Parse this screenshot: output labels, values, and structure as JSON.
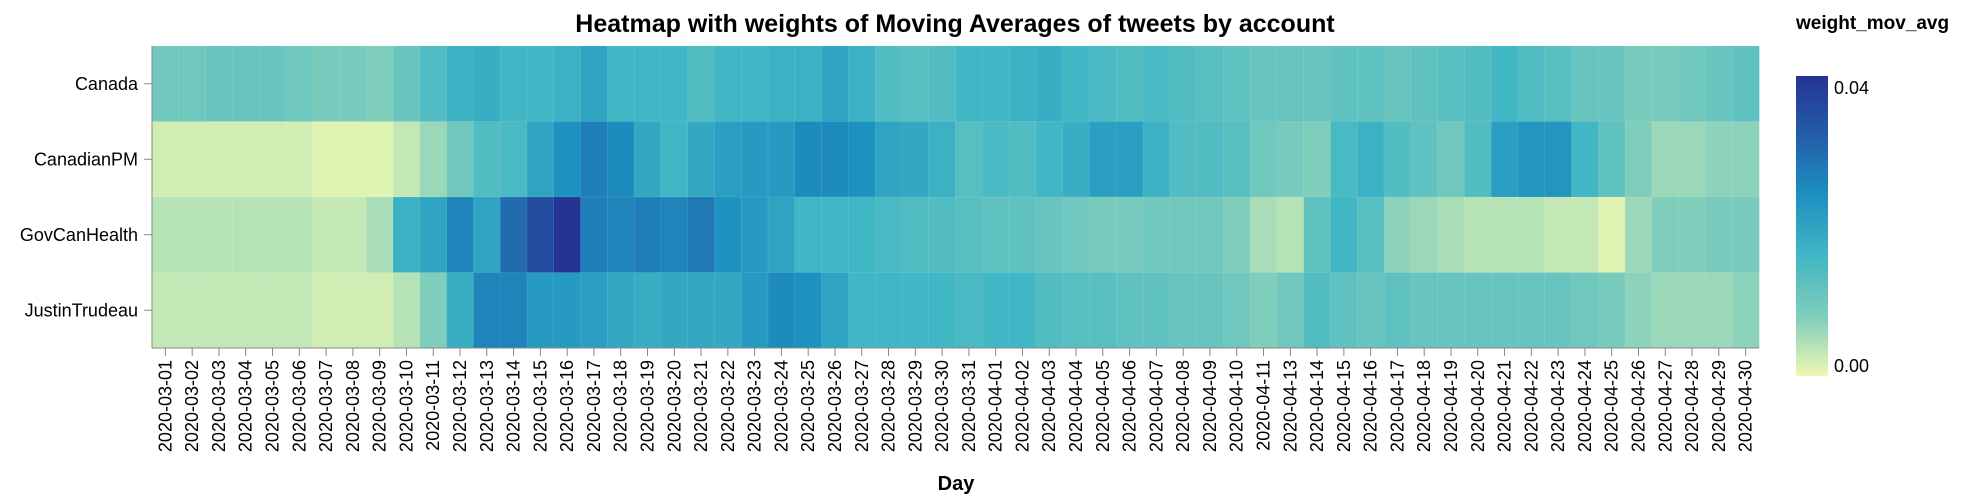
{
  "chart_data": {
    "type": "heatmap",
    "title": "Heatmap with weights of Moving Averages of tweets by account",
    "xlabel": "Day",
    "ylabel": "",
    "legend_title": "weight_mov_avg",
    "legend_position": "right",
    "legend_labels": [
      "0.04",
      "0.00"
    ],
    "color_domain": [
      0,
      0.04
    ],
    "color_scheme": [
      "#edf8b1",
      "#7fcdbb",
      "#41b6c4",
      "#1d91c0",
      "#225ea8",
      "#253494"
    ],
    "grid": false,
    "x": [
      "2020-03-01",
      "2020-03-02",
      "2020-03-03",
      "2020-03-04",
      "2020-03-05",
      "2020-03-06",
      "2020-03-07",
      "2020-03-08",
      "2020-03-09",
      "2020-03-10",
      "2020-03-11",
      "2020-03-12",
      "2020-03-13",
      "2020-03-14",
      "2020-03-15",
      "2020-03-16",
      "2020-03-17",
      "2020-03-18",
      "2020-03-19",
      "2020-03-20",
      "2020-03-21",
      "2020-03-22",
      "2020-03-23",
      "2020-03-24",
      "2020-03-25",
      "2020-03-26",
      "2020-03-27",
      "2020-03-28",
      "2020-03-29",
      "2020-03-30",
      "2020-03-31",
      "2020-04-01",
      "2020-04-02",
      "2020-04-03",
      "2020-04-04",
      "2020-04-05",
      "2020-04-06",
      "2020-04-07",
      "2020-04-08",
      "2020-04-09",
      "2020-04-10",
      "2020-04-11",
      "2020-04-13",
      "2020-04-14",
      "2020-04-15",
      "2020-04-16",
      "2020-04-17",
      "2020-04-18",
      "2020-04-19",
      "2020-04-20",
      "2020-04-21",
      "2020-04-22",
      "2020-04-23",
      "2020-04-24",
      "2020-04-25",
      "2020-04-26",
      "2020-04-27",
      "2020-04-28",
      "2020-04-29",
      "2020-04-30"
    ],
    "y": [
      "Canada",
      "CanadianPM",
      "GovCanHealth",
      "JustinTrudeau"
    ],
    "series": [
      {
        "name": "Canada",
        "values": [
          0.01,
          0.01,
          0.011,
          0.011,
          0.011,
          0.01,
          0.009,
          0.009,
          0.008,
          0.011,
          0.014,
          0.017,
          0.018,
          0.016,
          0.016,
          0.017,
          0.02,
          0.016,
          0.016,
          0.016,
          0.014,
          0.016,
          0.016,
          0.017,
          0.017,
          0.02,
          0.017,
          0.014,
          0.013,
          0.014,
          0.016,
          0.016,
          0.017,
          0.018,
          0.016,
          0.015,
          0.014,
          0.015,
          0.014,
          0.013,
          0.012,
          0.011,
          0.011,
          0.011,
          0.012,
          0.012,
          0.011,
          0.012,
          0.013,
          0.014,
          0.016,
          0.014,
          0.013,
          0.011,
          0.011,
          0.009,
          0.009,
          0.01,
          0.011,
          0.012
        ]
      },
      {
        "name": "CanadianPM",
        "values": [
          0.002,
          0.002,
          0.002,
          0.002,
          0.002,
          0.002,
          0.001,
          0.001,
          0.001,
          0.003,
          0.006,
          0.01,
          0.014,
          0.015,
          0.02,
          0.024,
          0.027,
          0.025,
          0.019,
          0.016,
          0.019,
          0.021,
          0.022,
          0.022,
          0.025,
          0.025,
          0.024,
          0.02,
          0.019,
          0.017,
          0.013,
          0.015,
          0.014,
          0.016,
          0.018,
          0.021,
          0.021,
          0.017,
          0.014,
          0.014,
          0.013,
          0.01,
          0.009,
          0.008,
          0.015,
          0.017,
          0.014,
          0.012,
          0.01,
          0.014,
          0.021,
          0.023,
          0.023,
          0.016,
          0.012,
          0.008,
          0.006,
          0.006,
          0.007,
          0.007
        ]
      },
      {
        "name": "GovCanHealth",
        "values": [
          0.004,
          0.004,
          0.004,
          0.004,
          0.004,
          0.004,
          0.003,
          0.003,
          0.005,
          0.017,
          0.02,
          0.026,
          0.02,
          0.03,
          0.035,
          0.04,
          0.027,
          0.026,
          0.027,
          0.026,
          0.028,
          0.024,
          0.022,
          0.02,
          0.016,
          0.016,
          0.016,
          0.015,
          0.014,
          0.014,
          0.013,
          0.012,
          0.012,
          0.011,
          0.01,
          0.009,
          0.009,
          0.01,
          0.01,
          0.01,
          0.008,
          0.005,
          0.004,
          0.012,
          0.016,
          0.013,
          0.007,
          0.006,
          0.005,
          0.004,
          0.004,
          0.004,
          0.003,
          0.003,
          0.001,
          0.006,
          0.008,
          0.008,
          0.009,
          0.009
        ]
      },
      {
        "name": "JustinTrudeau",
        "values": [
          0.003,
          0.003,
          0.003,
          0.003,
          0.003,
          0.003,
          0.002,
          0.002,
          0.002,
          0.004,
          0.008,
          0.018,
          0.026,
          0.026,
          0.022,
          0.022,
          0.021,
          0.019,
          0.018,
          0.019,
          0.019,
          0.019,
          0.022,
          0.025,
          0.024,
          0.02,
          0.016,
          0.016,
          0.016,
          0.016,
          0.015,
          0.016,
          0.016,
          0.014,
          0.013,
          0.013,
          0.012,
          0.012,
          0.011,
          0.011,
          0.01,
          0.008,
          0.01,
          0.014,
          0.012,
          0.011,
          0.012,
          0.011,
          0.011,
          0.011,
          0.011,
          0.011,
          0.011,
          0.01,
          0.009,
          0.007,
          0.006,
          0.006,
          0.006,
          0.007
        ]
      }
    ]
  }
}
